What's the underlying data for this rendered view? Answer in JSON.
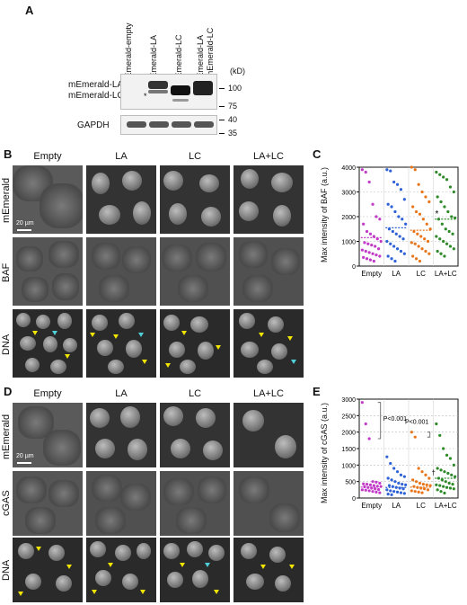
{
  "panels": {
    "a": "A",
    "b": "B",
    "c": "C",
    "d": "D",
    "e": "E"
  },
  "blot": {
    "lanes": [
      "mEmerald-empty",
      "mEmerald-LA",
      "mEmerald-LC",
      "mEmerald-LA",
      "+ mEmerald-LC"
    ],
    "kd_label": "(kD)",
    "mw_top": [
      "100",
      "75"
    ],
    "mw_bottom": [
      "40",
      "35"
    ],
    "row_label_la": "mEmerald-LA",
    "row_label_lc": "mEmerald-LC",
    "row_label_gapdh": "GAPDH"
  },
  "microscopy_b": {
    "columns": [
      "Empty",
      "LA",
      "LC",
      "LA+LC"
    ],
    "rows": [
      "mEmerald",
      "BAF",
      "DNA"
    ],
    "scale": "20 µm"
  },
  "microscopy_d": {
    "columns": [
      "Empty",
      "LA",
      "LC",
      "LA+LC"
    ],
    "rows": [
      "mEmerald",
      "cGAS",
      "DNA"
    ],
    "scale": "20 µm"
  },
  "plot_c": {
    "ylabel": "Max intensity of BAF (a.u.)",
    "annotation": "*"
  },
  "plot_e": {
    "ylabel": "Max intensity of cGAS (a.u.)",
    "p1": "P<0.001",
    "p2": "P<0.001",
    "annotation": "†"
  },
  "chart_data": [
    {
      "type": "scatter",
      "title": "",
      "xlabel": "",
      "ylabel": "Max intensity of BAF (a.u.)",
      "categories": [
        "Empty",
        "LA",
        "LC",
        "LA+LC"
      ],
      "ylim": [
        0,
        4000
      ],
      "yticks": [
        0,
        1000,
        2000,
        3000,
        4000
      ],
      "grid": true,
      "colors": [
        "#c23bc8",
        "#2e62d6",
        "#e8761c",
        "#2f8a2a"
      ],
      "series": [
        {
          "values": [
            3900,
            3800,
            3400,
            2500,
            2000,
            1900,
            1700,
            1400,
            1300,
            1200,
            1100,
            1000,
            950,
            900,
            850,
            800,
            700,
            650,
            600,
            550,
            500,
            450,
            400,
            350,
            300,
            250,
            200
          ],
          "mean": 1150
        },
        {
          "values": [
            3900,
            3850,
            3400,
            3300,
            3100,
            2700,
            2500,
            2400,
            2200,
            2000,
            1900,
            1700,
            1500,
            1400,
            1300,
            1200,
            1100,
            1000,
            900,
            800,
            700,
            600,
            500,
            400,
            300,
            200
          ],
          "mean": 1550
        },
        {
          "values": [
            4000,
            3900,
            3300,
            3000,
            2800,
            2600,
            2400,
            2200,
            2100,
            1900,
            1700,
            1500,
            1400,
            1300,
            1200,
            1100,
            1000,
            950,
            900,
            800,
            700,
            600,
            500,
            400,
            300,
            200
          ],
          "mean": 1450
        },
        {
          "values": [
            3800,
            3700,
            3600,
            3500,
            3200,
            3000,
            2800,
            2600,
            2400,
            2200,
            2000,
            1950,
            1900,
            1700,
            1500,
            1400,
            1300,
            1200,
            1100,
            1000,
            900,
            800,
            700,
            600,
            500,
            400
          ],
          "mean": 1900
        }
      ]
    },
    {
      "type": "scatter",
      "title": "",
      "xlabel": "",
      "ylabel": "Max intensity of cGAS (a.u.)",
      "categories": [
        "Empty",
        "LA",
        "LC",
        "LA+LC"
      ],
      "ylim": [
        0,
        3000
      ],
      "yticks": [
        0,
        500,
        1000,
        1500,
        2000,
        2500,
        3000
      ],
      "grid": true,
      "colors": [
        "#c23bc8",
        "#2e62d6",
        "#e8761c",
        "#2f8a2a"
      ],
      "series": [
        {
          "values": [
            2900,
            2250,
            1800,
            500,
            480,
            450,
            430,
            420,
            400,
            380,
            360,
            350,
            340,
            320,
            300,
            280,
            260,
            250,
            240,
            220,
            200,
            180,
            160
          ],
          "mean": 330
        },
        {
          "values": [
            1250,
            1050,
            900,
            800,
            700,
            650,
            600,
            550,
            500,
            450,
            420,
            400,
            380,
            350,
            320,
            300,
            280,
            250,
            220,
            200,
            180,
            160,
            140,
            120,
            100
          ],
          "mean": 320
        },
        {
          "values": [
            2000,
            1850,
            900,
            800,
            700,
            600,
            550,
            500,
            450,
            420,
            400,
            380,
            350,
            320,
            300,
            280,
            250,
            220,
            200,
            180,
            160
          ],
          "mean": 330
        },
        {
          "values": [
            2250,
            1900,
            1500,
            1300,
            1200,
            1000,
            900,
            850,
            800,
            750,
            700,
            650,
            600,
            550,
            500,
            450,
            420,
            400,
            380,
            350,
            320,
            300,
            280,
            250,
            200,
            150
          ],
          "mean": 600
        }
      ]
    }
  ]
}
